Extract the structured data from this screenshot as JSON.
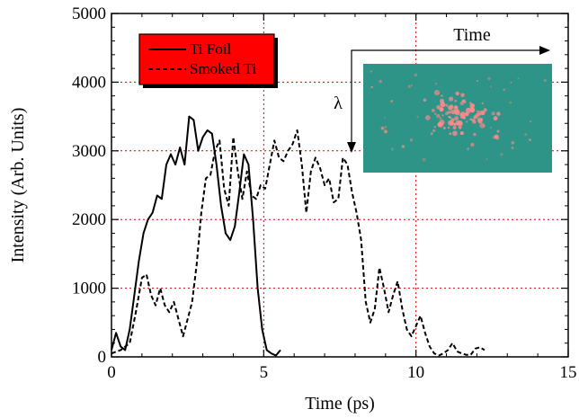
{
  "chart_data": {
    "type": "line",
    "title": "",
    "xlabel": "Time (ps)",
    "ylabel": "Intensity (Arb. Units)",
    "xlim": [
      0,
      15
    ],
    "ylim": [
      0,
      5000
    ],
    "xticks": [
      0,
      5,
      10,
      15
    ],
    "yticks": [
      0,
      1000,
      2000,
      3000,
      4000,
      5000
    ],
    "grid": true,
    "grid_style": "dotted",
    "grid_color": "#dd0000",
    "legend_placement": "top-left",
    "legend_background": "#ff0000",
    "series": [
      {
        "name": "Ti Foil",
        "style": "solid",
        "color": "#000000",
        "x": [
          0.0,
          0.15,
          0.3,
          0.45,
          0.6,
          0.75,
          0.9,
          1.05,
          1.2,
          1.35,
          1.5,
          1.65,
          1.8,
          1.95,
          2.1,
          2.25,
          2.4,
          2.55,
          2.7,
          2.85,
          3.0,
          3.15,
          3.3,
          3.45,
          3.6,
          3.75,
          3.9,
          4.05,
          4.2,
          4.35,
          4.5,
          4.65,
          4.8,
          4.95,
          5.1,
          5.25,
          5.4,
          5.55
        ],
        "y": [
          100,
          350,
          150,
          100,
          400,
          900,
          1400,
          1800,
          2000,
          2100,
          2350,
          2300,
          2800,
          2950,
          2800,
          3050,
          2800,
          3500,
          3450,
          3000,
          3200,
          3300,
          3250,
          2800,
          2200,
          1800,
          1700,
          1900,
          2400,
          2950,
          2800,
          2000,
          1000,
          400,
          100,
          50,
          20,
          100
        ]
      },
      {
        "name": "Smoked Ti",
        "style": "dashed",
        "color": "#000000",
        "x": [
          0.0,
          0.3,
          0.6,
          0.8,
          1.0,
          1.15,
          1.3,
          1.45,
          1.6,
          1.75,
          1.9,
          2.05,
          2.2,
          2.35,
          2.5,
          2.65,
          2.8,
          2.95,
          3.1,
          3.25,
          3.4,
          3.55,
          3.7,
          3.85,
          4.0,
          4.15,
          4.3,
          4.45,
          4.6,
          4.75,
          4.9,
          5.05,
          5.2,
          5.35,
          5.5,
          5.65,
          5.8,
          5.95,
          6.1,
          6.25,
          6.4,
          6.55,
          6.7,
          6.85,
          7.0,
          7.15,
          7.3,
          7.45,
          7.6,
          7.75,
          7.9,
          8.05,
          8.2,
          8.35,
          8.5,
          8.65,
          8.8,
          8.95,
          9.1,
          9.25,
          9.4,
          9.55,
          9.7,
          9.85,
          10.0,
          10.15,
          10.3,
          10.45,
          10.6,
          10.75,
          10.9,
          11.05,
          11.2,
          11.35,
          11.5,
          11.65,
          11.8,
          11.95,
          12.1,
          12.25
        ],
        "y": [
          50,
          100,
          200,
          650,
          1150,
          1200,
          900,
          750,
          1000,
          750,
          650,
          800,
          550,
          300,
          550,
          800,
          1350,
          2100,
          2600,
          2650,
          3000,
          3150,
          2450,
          2200,
          3200,
          2700,
          2300,
          2700,
          2350,
          2300,
          2500,
          2450,
          2800,
          3150,
          2900,
          2850,
          3000,
          3100,
          3300,
          2800,
          2100,
          2700,
          2900,
          2750,
          2500,
          2600,
          2250,
          2300,
          2900,
          2800,
          2400,
          2100,
          1700,
          800,
          500,
          700,
          1300,
          1000,
          650,
          900,
          1100,
          700,
          400,
          300,
          450,
          600,
          350,
          150,
          50,
          20,
          50,
          100,
          200,
          80,
          50,
          30,
          30,
          120,
          140,
          100
        ]
      }
    ]
  },
  "inset": {
    "title": "Time",
    "side_label": "λ",
    "background_color": "#2f9488",
    "spot_color": "#ff8a8a"
  }
}
